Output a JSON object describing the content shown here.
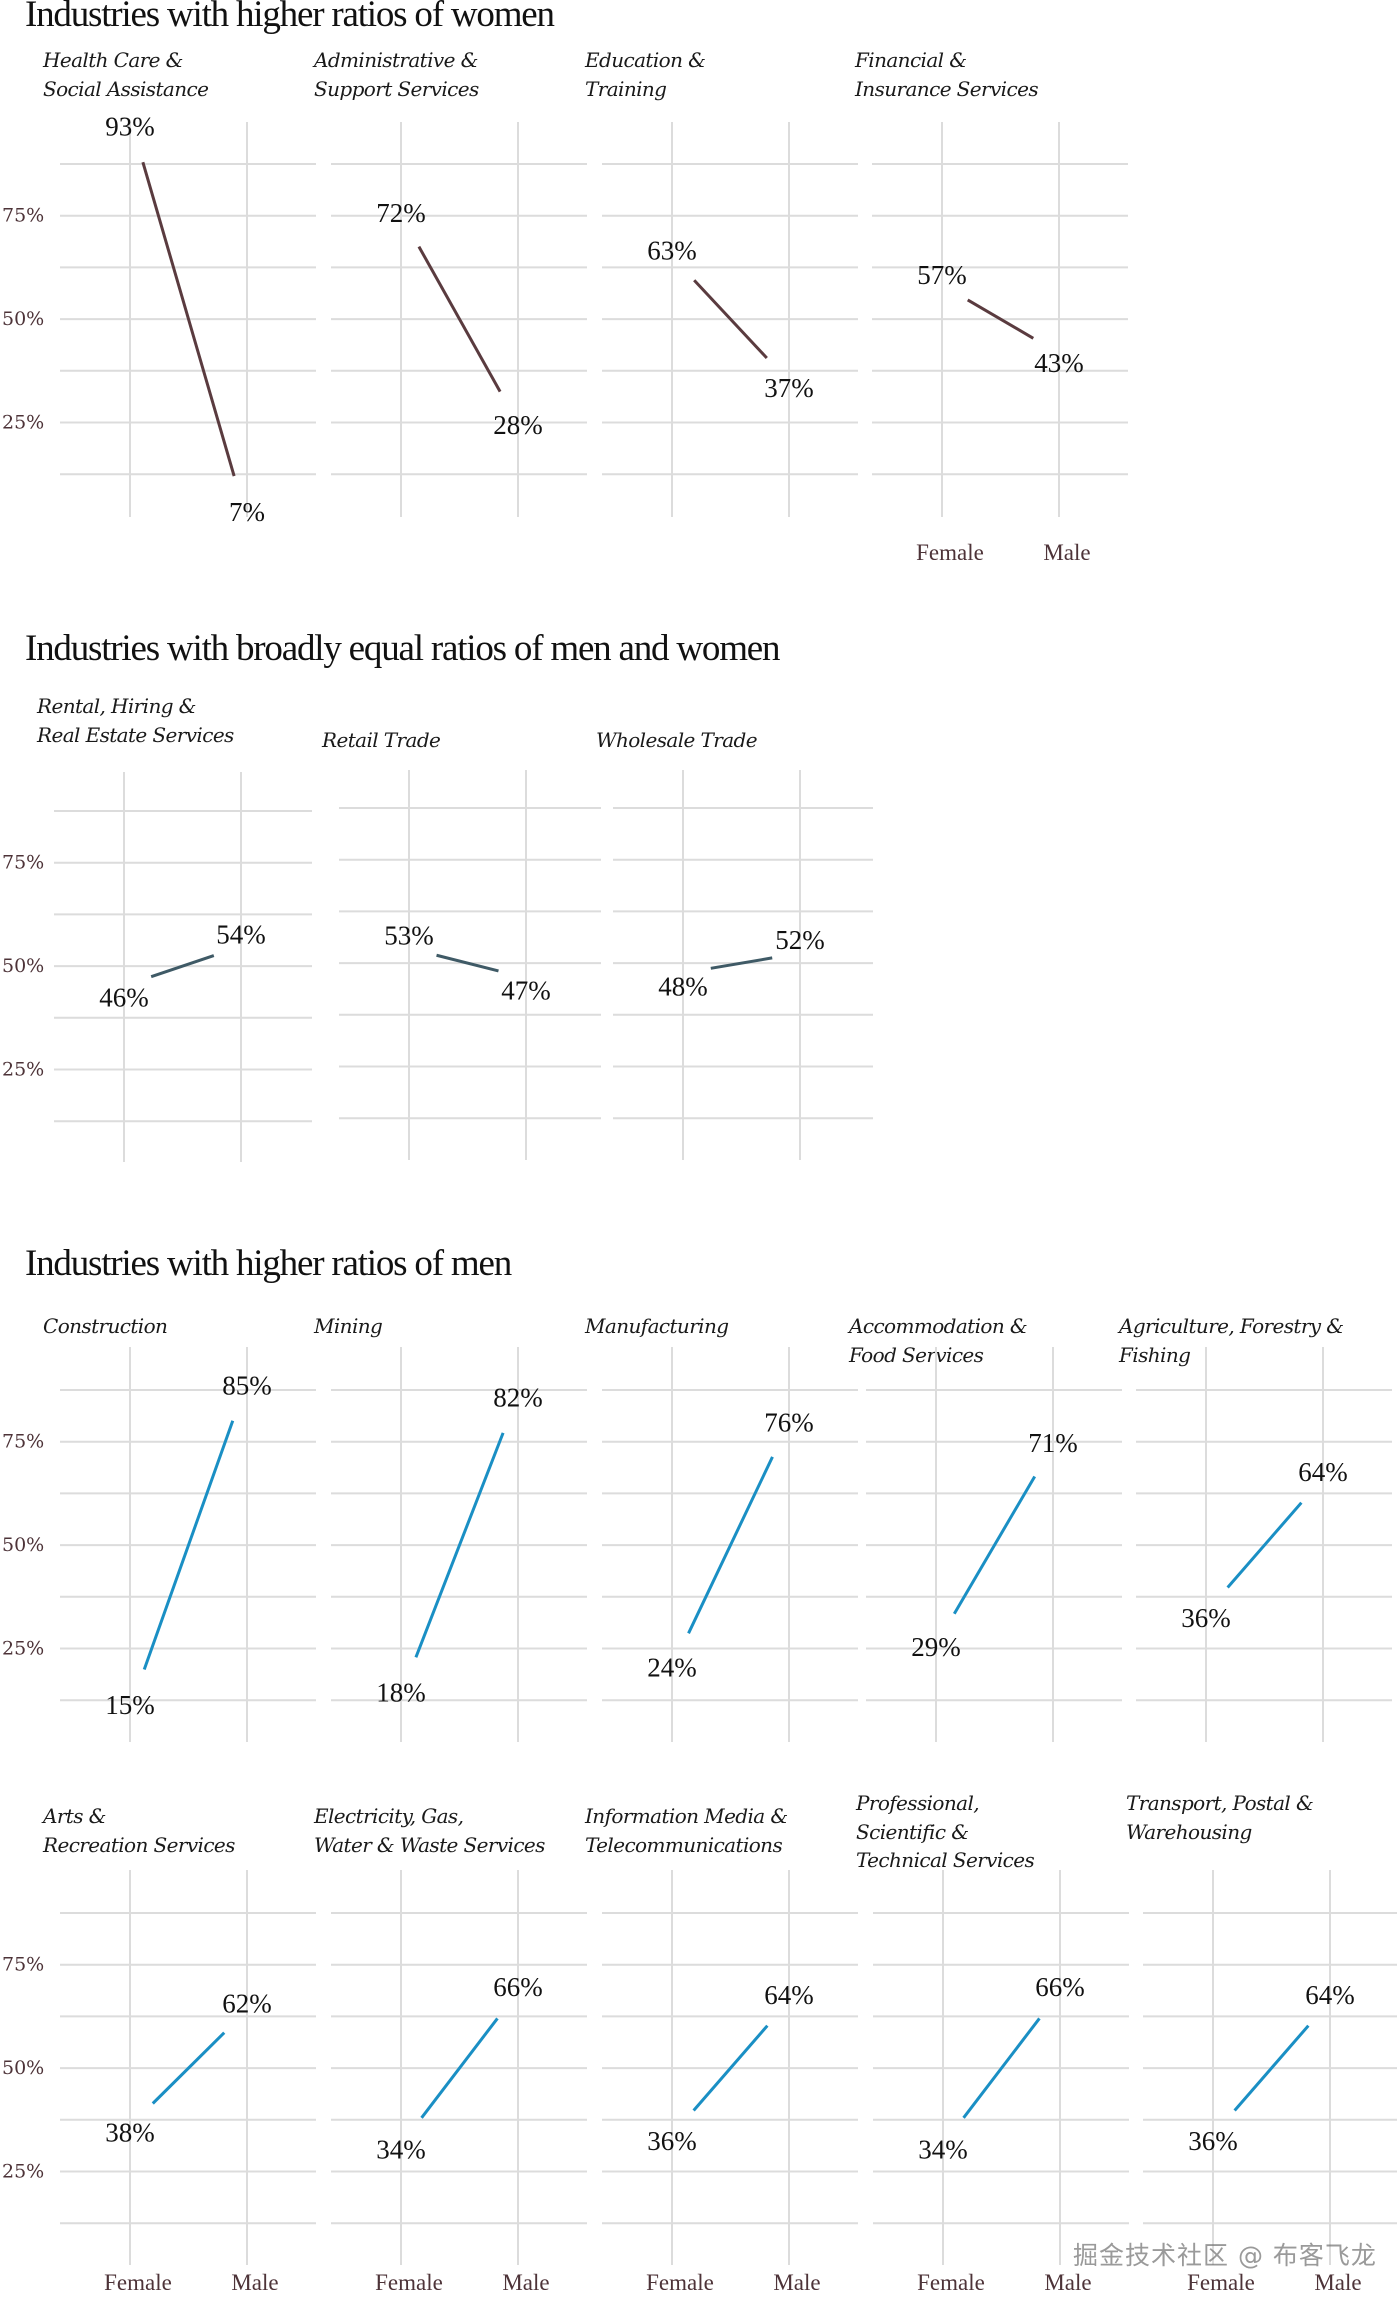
{
  "colors": {
    "women_line": "#5a3b3f",
    "equal_line": "#3f5a66",
    "men_line": "#1a8fc4",
    "axis_text": "#4d3338"
  },
  "watermark": "掘金技术社区 @ 布客飞龙",
  "chart_data": [
    {
      "type": "line",
      "title": "Industries with higher ratios of women",
      "categories": [
        "Female",
        "Male"
      ],
      "ytick_labels": [
        "75%",
        "50%",
        "25%"
      ],
      "yticks": [
        75,
        50,
        25
      ],
      "ylim": [
        0,
        100
      ],
      "grid": true,
      "color_key": "women_line",
      "panels": [
        {
          "label_lines": [
            "Health Care &",
            "Social Assistance"
          ],
          "values": [
            93,
            7
          ],
          "value_labels": [
            "93%",
            "7%"
          ]
        },
        {
          "label_lines": [
            "Administrative &",
            "Support Services"
          ],
          "values": [
            72,
            28
          ],
          "value_labels": [
            "72%",
            "28%"
          ]
        },
        {
          "label_lines": [
            "Education &",
            "Training"
          ],
          "values": [
            63,
            37
          ],
          "value_labels": [
            "63%",
            "37%"
          ]
        },
        {
          "label_lines": [
            "Financial &",
            "Insurance Services"
          ],
          "values": [
            57,
            43
          ],
          "value_labels": [
            "57%",
            "43%"
          ],
          "show_categories": true
        }
      ]
    },
    {
      "type": "line",
      "title": "Industries with broadly equal ratios of men and women",
      "categories": [
        "Female",
        "Male"
      ],
      "ytick_labels": [
        "75%",
        "50%",
        "25%"
      ],
      "yticks": [
        75,
        50,
        25
      ],
      "ylim": [
        0,
        100
      ],
      "grid": true,
      "color_key": "equal_line",
      "panels": [
        {
          "label_lines": [
            "Rental, Hiring &",
            "Real Estate Services"
          ],
          "values": [
            46,
            54
          ],
          "value_labels": [
            "46%",
            "54%"
          ]
        },
        {
          "label_lines": [
            "Retail Trade"
          ],
          "values": [
            53,
            47
          ],
          "value_labels": [
            "53%",
            "47%"
          ]
        },
        {
          "label_lines": [
            "Wholesale Trade"
          ],
          "values": [
            48,
            52
          ],
          "value_labels": [
            "48%",
            "52%"
          ]
        }
      ]
    },
    {
      "type": "line",
      "title": "Industries with higher ratios of men",
      "categories": [
        "Female",
        "Male"
      ],
      "ytick_labels": [
        "75%",
        "50%",
        "25%"
      ],
      "yticks": [
        75,
        50,
        25
      ],
      "ylim": [
        0,
        100
      ],
      "grid": true,
      "color_key": "men_line",
      "panels": [
        {
          "label_lines": [
            "Construction"
          ],
          "values": [
            15,
            85
          ],
          "value_labels": [
            "15%",
            "85%"
          ]
        },
        {
          "label_lines": [
            "Mining"
          ],
          "values": [
            18,
            82
          ],
          "value_labels": [
            "18%",
            "82%"
          ]
        },
        {
          "label_lines": [
            "Manufacturing"
          ],
          "values": [
            24,
            76
          ],
          "value_labels": [
            "24%",
            "76%"
          ]
        },
        {
          "label_lines": [
            "Accommodation &",
            "Food Services"
          ],
          "values": [
            29,
            71
          ],
          "value_labels": [
            "29%",
            "71%"
          ]
        },
        {
          "label_lines": [
            "Agriculture, Forestry &",
            "Fishing"
          ],
          "values": [
            36,
            64
          ],
          "value_labels": [
            "36%",
            "64%"
          ]
        },
        {
          "label_lines": [
            "Arts &",
            "Recreation Services"
          ],
          "values": [
            38,
            62
          ],
          "value_labels": [
            "38%",
            "62%"
          ],
          "show_categories": true
        },
        {
          "label_lines": [
            "Electricity, Gas,",
            "Water & Waste Services"
          ],
          "values": [
            34,
            66
          ],
          "value_labels": [
            "34%",
            "66%"
          ],
          "show_categories": true
        },
        {
          "label_lines": [
            "Information Media &",
            "Telecommunications"
          ],
          "values": [
            36,
            64
          ],
          "value_labels": [
            "36%",
            "64%"
          ],
          "show_categories": true
        },
        {
          "label_lines": [
            "Professional,",
            "Scientific &",
            "Technical Services"
          ],
          "values": [
            34,
            66
          ],
          "value_labels": [
            "34%",
            "66%"
          ],
          "show_categories": true
        },
        {
          "label_lines": [
            "Transport, Postal &",
            "Warehousing"
          ],
          "values": [
            36,
            64
          ],
          "value_labels": [
            "36%",
            "64%"
          ],
          "show_categories": true
        }
      ]
    }
  ]
}
